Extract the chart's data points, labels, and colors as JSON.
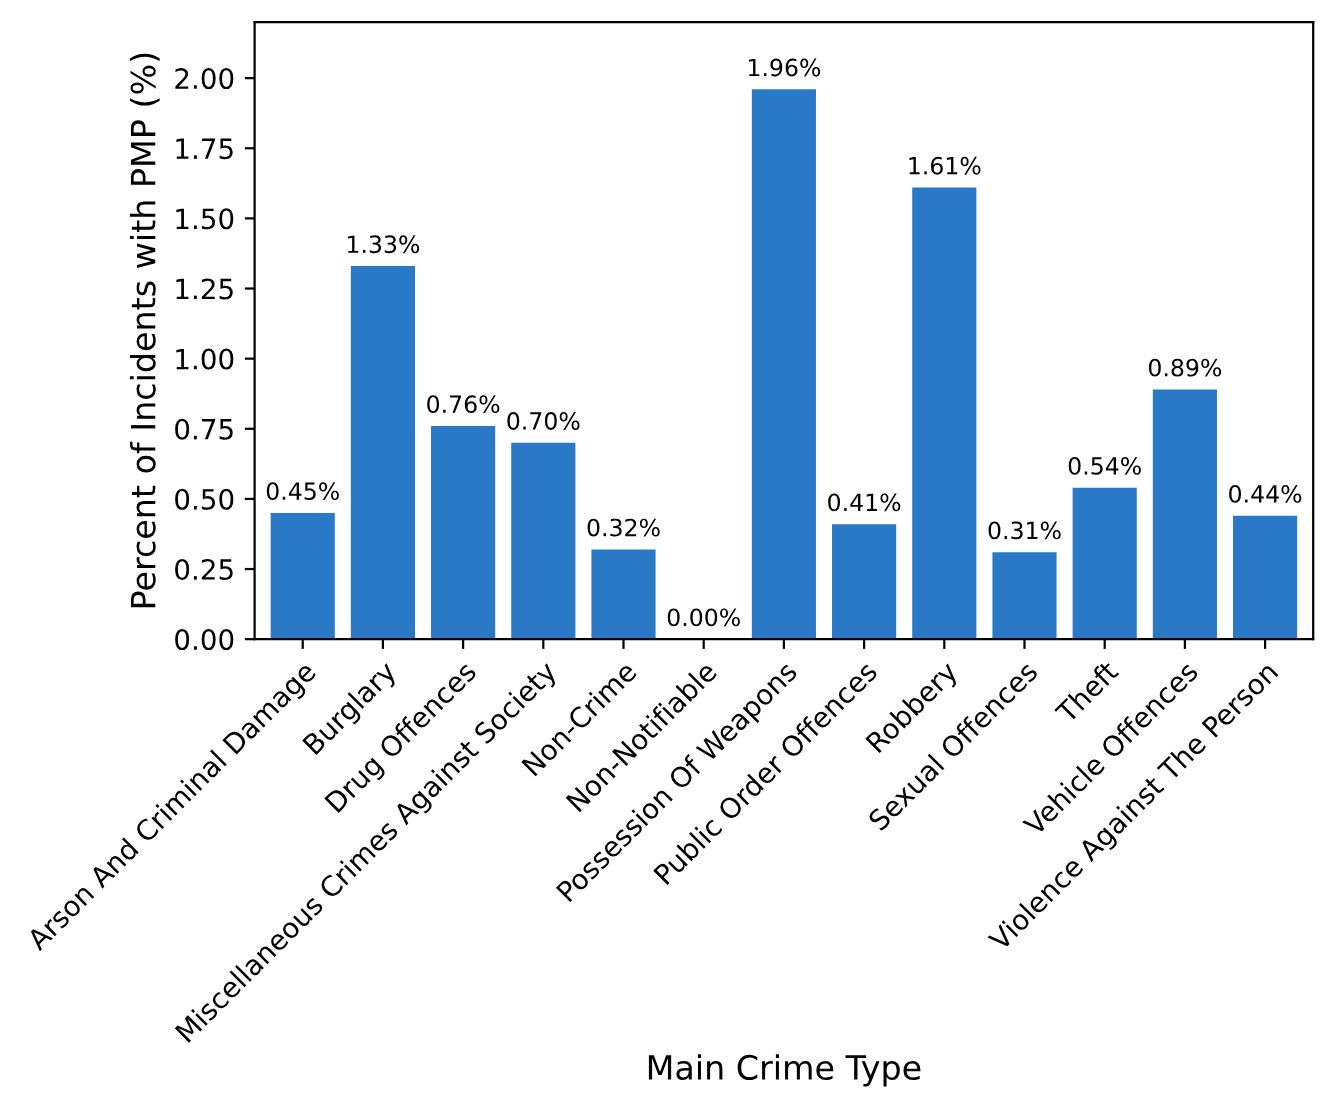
{
  "chart_data": {
    "type": "bar",
    "xlabel": "Main Crime Type",
    "ylabel": "Percent of Incidents with PMP (%)",
    "categories": [
      "Arson And Criminal Damage",
      "Burglary",
      "Drug Offences",
      "Miscellaneous Crimes Against Society",
      "Non-Crime",
      "Non-Notifiable",
      "Possession Of Weapons",
      "Public Order Offences",
      "Robbery",
      "Sexual Offences",
      "Theft",
      "Vehicle Offences",
      "Violence Against The Person"
    ],
    "values": [
      0.45,
      1.33,
      0.76,
      0.7,
      0.32,
      0.0,
      1.96,
      0.41,
      1.61,
      0.31,
      0.54,
      0.89,
      0.44
    ],
    "value_labels": [
      "0.45%",
      "1.33%",
      "0.76%",
      "0.70%",
      "0.32%",
      "0.00%",
      "1.96%",
      "0.41%",
      "1.61%",
      "0.31%",
      "0.54%",
      "0.89%",
      "0.44%"
    ],
    "color": "#2979c6",
    "ylim": [
      0,
      2.2
    ],
    "yticks": [
      {
        "value": 0,
        "label": "0.00"
      },
      {
        "value": 0.25,
        "label": "0.25"
      },
      {
        "value": 0.5,
        "label": "0.50"
      },
      {
        "value": 0.75,
        "label": "0.75"
      },
      {
        "value": 1,
        "label": "1.00"
      },
      {
        "value": 1.25,
        "label": "1.25"
      },
      {
        "value": 1.5,
        "label": "1.50"
      },
      {
        "value": 1.75,
        "label": "1.75"
      },
      {
        "value": 2,
        "label": "2.00"
      }
    ],
    "grid": false,
    "legend": false
  }
}
